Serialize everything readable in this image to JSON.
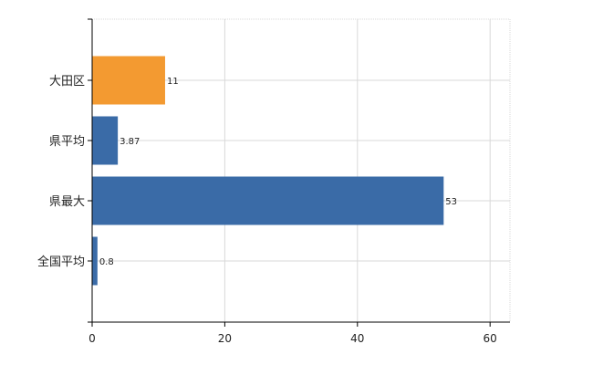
{
  "chart_data": {
    "type": "bar",
    "orientation": "horizontal",
    "categories": [
      "大田区",
      "県平均",
      "県最大",
      "全国平均"
    ],
    "values": [
      11,
      3.87,
      53,
      0.8
    ],
    "value_labels": [
      "11",
      "3.87",
      "53",
      "0.8"
    ],
    "highlight_index": 0,
    "xlim": [
      0,
      63
    ],
    "xticks": [
      0,
      20,
      40,
      60
    ],
    "xtick_labels": [
      "0",
      "20",
      "40",
      "60"
    ],
    "grid": true,
    "title": "",
    "xlabel": "",
    "ylabel": "",
    "colors": {
      "highlight": "#F39A31",
      "default": "#3A6BA7",
      "grid": "#d8d8d8",
      "axis": "#000000"
    }
  }
}
